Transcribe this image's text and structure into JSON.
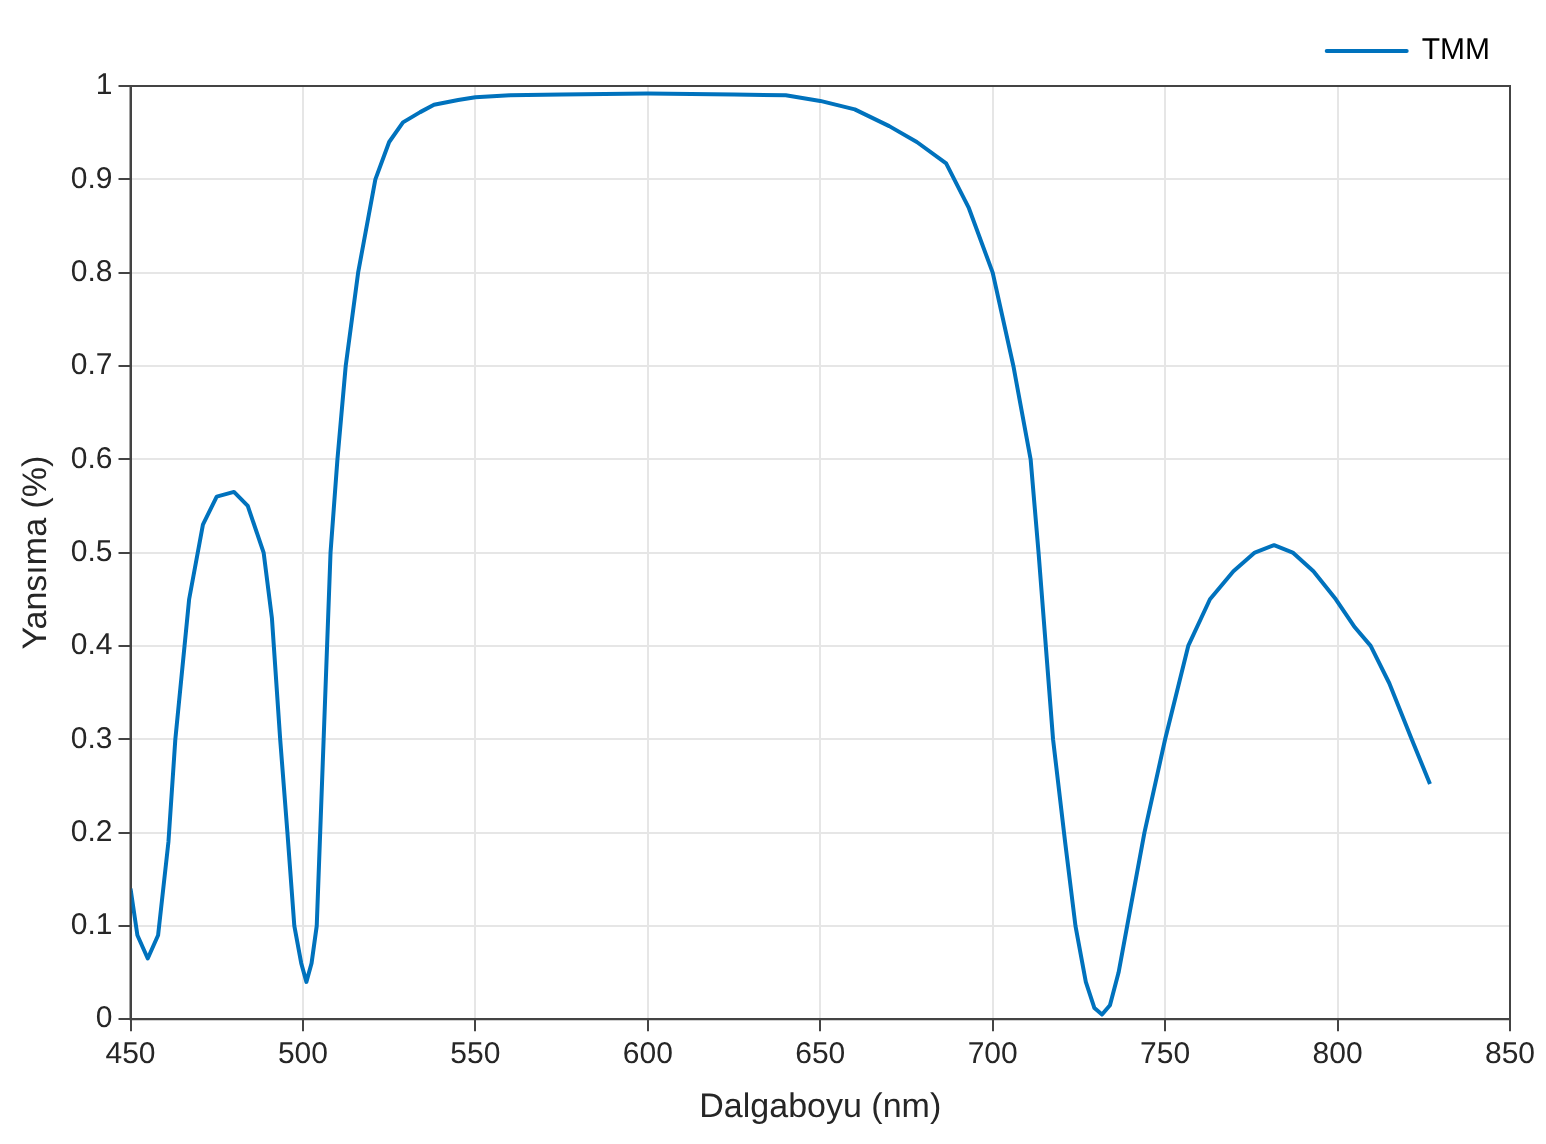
{
  "chart_data": {
    "type": "line",
    "xlabel": "Dalgaboyu (nm)",
    "ylabel": "Yansıma (%)",
    "xlim": [
      450,
      850
    ],
    "ylim": [
      0,
      1
    ],
    "xticks": [
      450,
      500,
      550,
      600,
      650,
      700,
      750,
      800,
      850
    ],
    "yticks": [
      0,
      0.1,
      0.2,
      0.3,
      0.4,
      0.5,
      0.6,
      0.7,
      0.8,
      0.9,
      1
    ],
    "grid": true,
    "legend": "top right",
    "marker": "none",
    "line_style": "solid",
    "series": [
      {
        "name": "TMM",
        "color": "#0072bd",
        "x": [
          450,
          452,
          455,
          458,
          461,
          463,
          467,
          471,
          475,
          480,
          484,
          488.6,
          491,
          493.4,
          495.5,
          497.5,
          499.5,
          501,
          502.5,
          504,
          506,
          508,
          510,
          512.4,
          516,
          521,
          525,
          529,
          534,
          538,
          545,
          550,
          560,
          575,
          600,
          625,
          640,
          650,
          660,
          670,
          678,
          686.5,
          693,
          700,
          706,
          711,
          713.3,
          717.5,
          721,
          724,
          727,
          729.5,
          731.7,
          734,
          736.5,
          739,
          744,
          750,
          756.7,
          763,
          769.8,
          776,
          781.6,
          787,
          793,
          799.5,
          805,
          809.6,
          815,
          821.5,
          826.8
        ],
        "values": [
          0.14,
          0.09,
          0.065,
          0.09,
          0.19,
          0.3,
          0.45,
          0.53,
          0.56,
          0.565,
          0.55,
          0.5,
          0.43,
          0.3,
          0.2,
          0.1,
          0.06,
          0.04,
          0.06,
          0.1,
          0.3,
          0.5,
          0.6,
          0.7,
          0.8,
          0.9,
          0.94,
          0.961,
          0.972,
          0.98,
          0.985,
          0.988,
          0.99,
          0.991,
          0.992,
          0.991,
          0.99,
          0.984,
          0.975,
          0.957,
          0.94,
          0.917,
          0.87,
          0.8,
          0.7,
          0.6,
          0.5,
          0.3,
          0.19,
          0.1,
          0.04,
          0.012,
          0.005,
          0.015,
          0.05,
          0.1,
          0.2,
          0.3,
          0.4,
          0.45,
          0.48,
          0.5,
          0.508,
          0.5,
          0.48,
          0.45,
          0.42,
          0.4,
          0.36,
          0.3,
          0.252
        ]
      }
    ]
  }
}
